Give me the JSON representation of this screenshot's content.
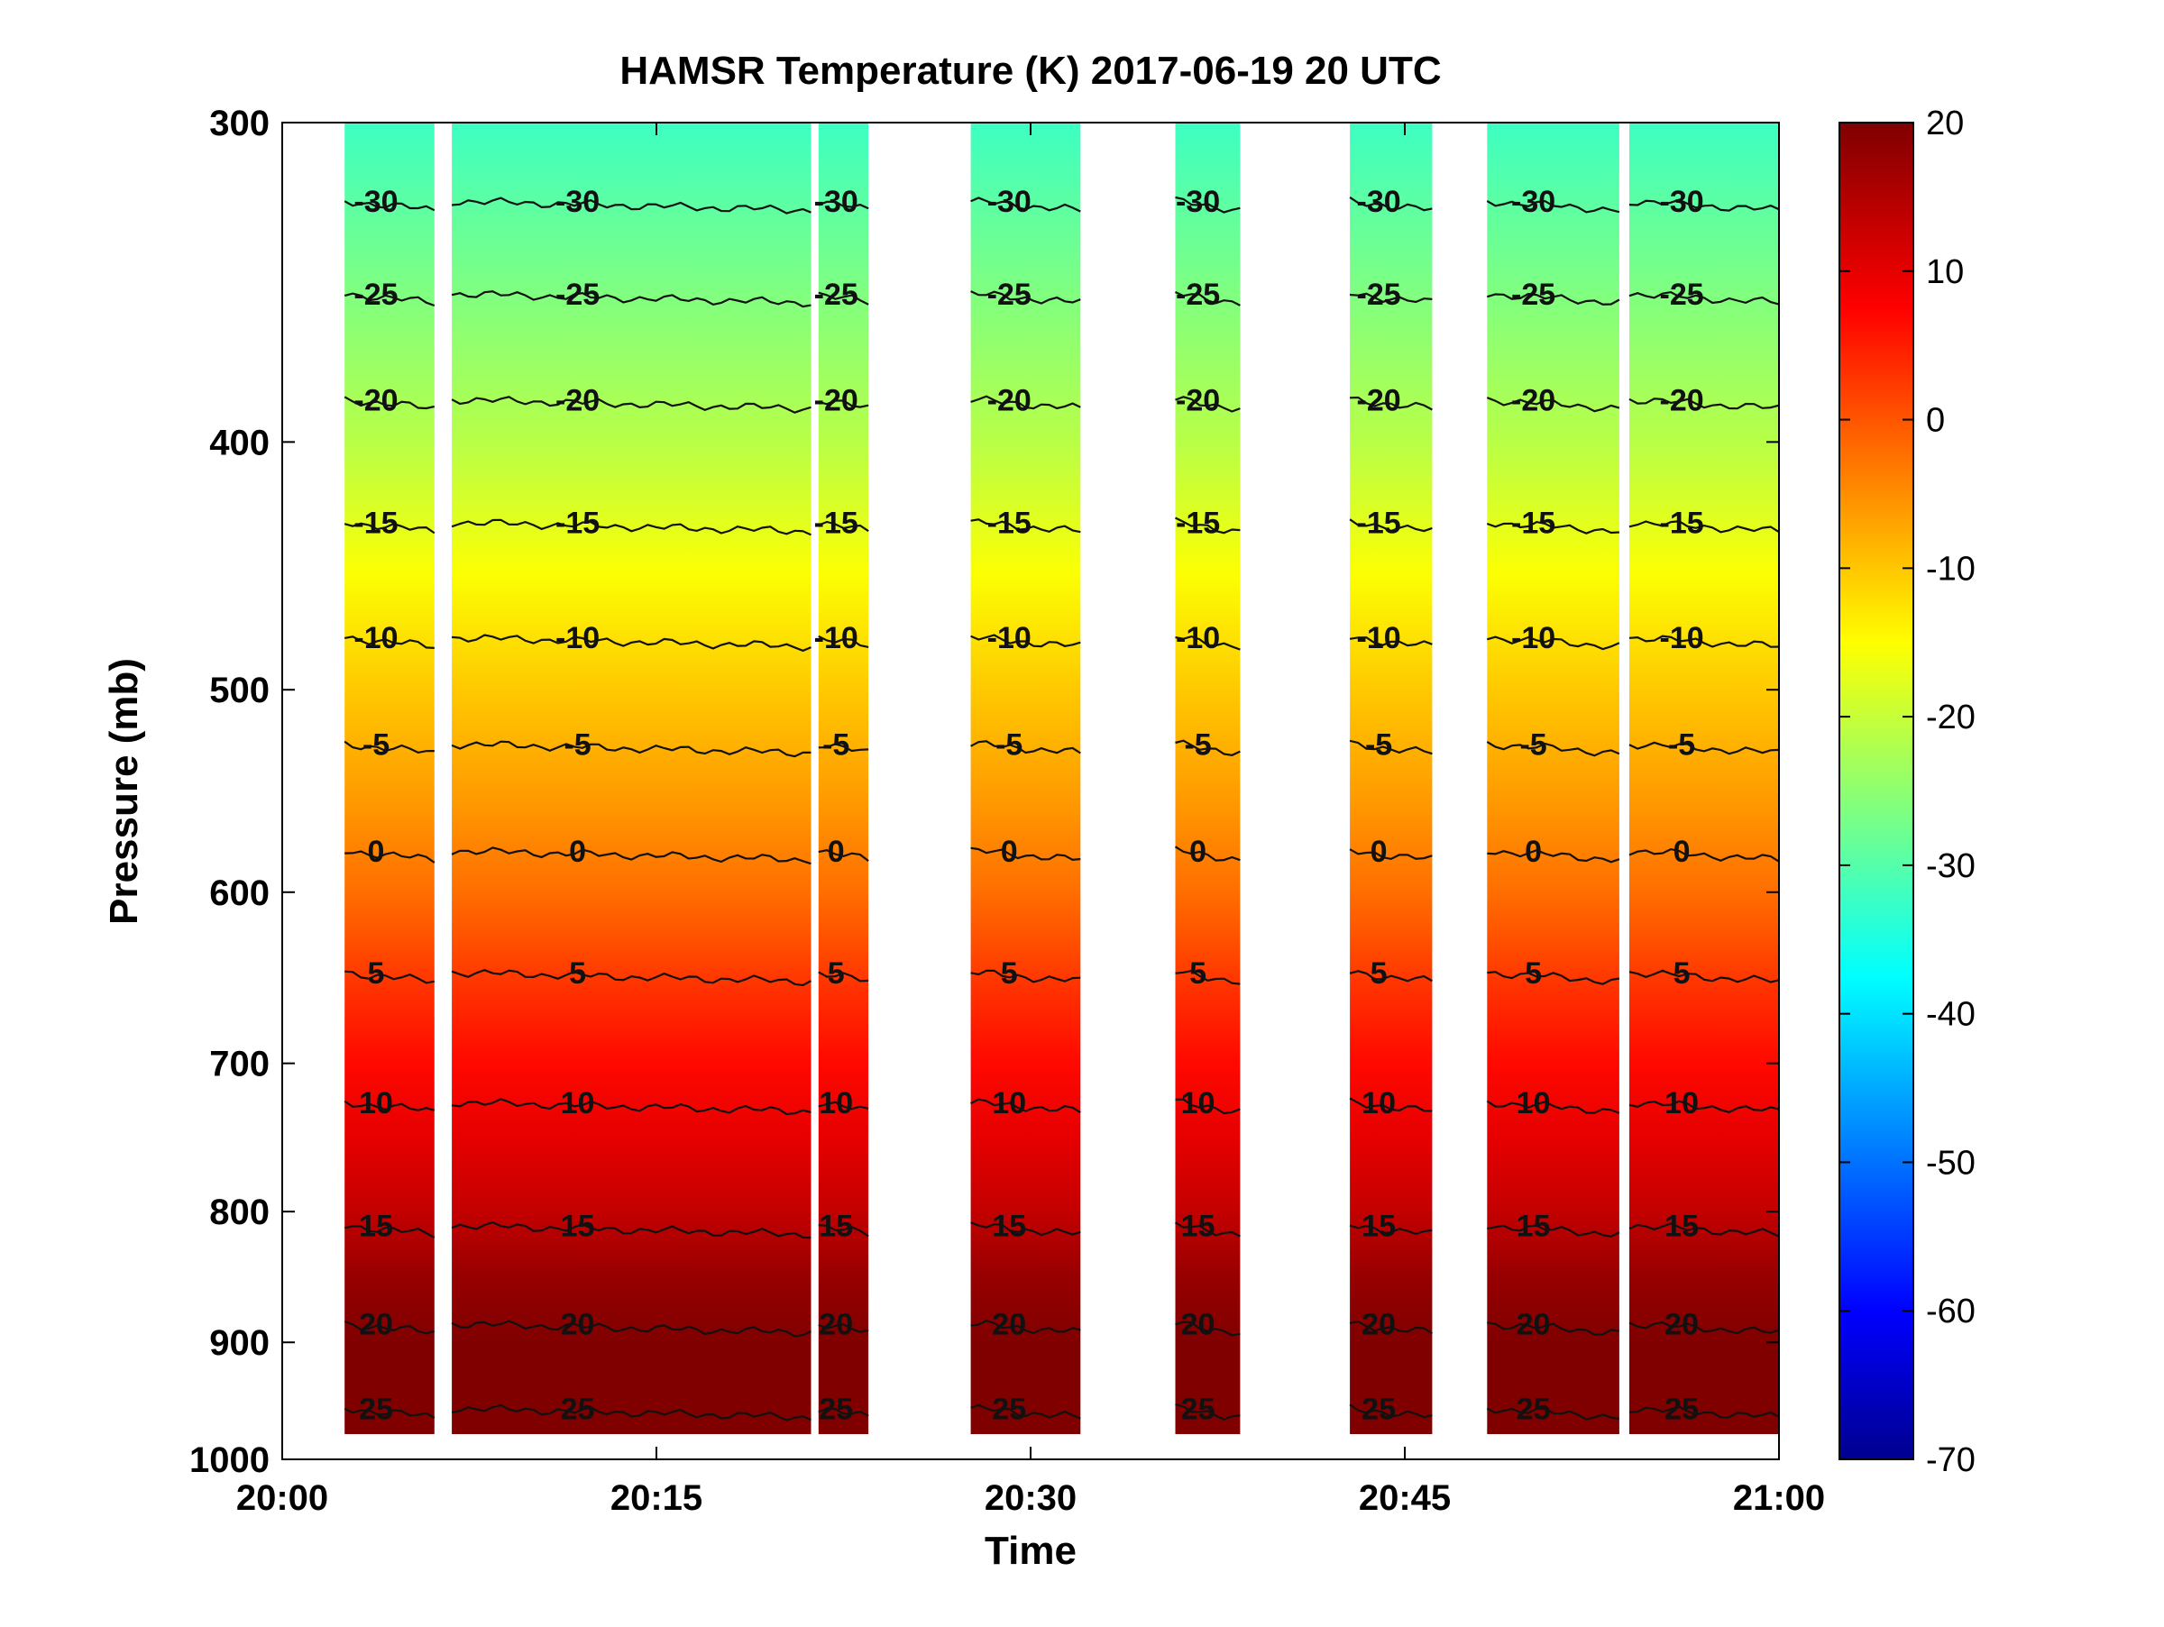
{
  "chart_data": {
    "type": "heatmap",
    "title": "HAMSR  Temperature (K) 2017-06-19 20 UTC",
    "xlabel": "Time",
    "ylabel": "Pressure (mb)",
    "x_range": [
      "20:00",
      "21:00"
    ],
    "x_ticks": [
      "20:00",
      "20:15",
      "20:30",
      "20:45",
      "21:00"
    ],
    "y_range": [
      300,
      1000
    ],
    "y_scale": "log",
    "y_direction": "reversed",
    "y_ticks": [
      300,
      400,
      500,
      600,
      700,
      800,
      900,
      1000
    ],
    "colorbar": {
      "colormap": "jet",
      "range": [
        -70,
        20
      ],
      "ticks": [
        20,
        10,
        0,
        -10,
        -20,
        -30,
        -40,
        -50,
        -60,
        -70
      ]
    },
    "data_segments_minutes": [
      [
        2.5,
        6.1
      ],
      [
        6.8,
        21.2
      ],
      [
        21.5,
        23.5
      ],
      [
        27.6,
        32.0
      ],
      [
        35.8,
        38.4
      ],
      [
        42.8,
        46.1
      ],
      [
        48.3,
        53.6
      ],
      [
        54.0,
        60.0
      ]
    ],
    "temperature_profile": {
      "pressure_mb": [
        300,
        350,
        400,
        450,
        500,
        550,
        600,
        650,
        700,
        750,
        800,
        850,
        900,
        950,
        1000
      ],
      "temperature": [
        -31,
        -25,
        -20,
        -14,
        -9,
        -5,
        -1,
        4,
        8,
        11,
        14,
        18,
        21,
        25,
        28
      ]
    },
    "contours": [
      {
        "level": -30,
        "pressure_mb": 322,
        "label": "-30"
      },
      {
        "level": -25,
        "pressure_mb": 350,
        "label": "-25"
      },
      {
        "level": -20,
        "pressure_mb": 385,
        "label": "-20"
      },
      {
        "level": -15,
        "pressure_mb": 430,
        "label": "-15"
      },
      {
        "level": -10,
        "pressure_mb": 477,
        "label": "-10"
      },
      {
        "level": -5,
        "pressure_mb": 525,
        "label": "-5"
      },
      {
        "level": 0,
        "pressure_mb": 578,
        "label": "0"
      },
      {
        "level": 5,
        "pressure_mb": 645,
        "label": "5"
      },
      {
        "level": 10,
        "pressure_mb": 725,
        "label": "10"
      },
      {
        "level": 15,
        "pressure_mb": 810,
        "label": "15"
      },
      {
        "level": 20,
        "pressure_mb": 885,
        "label": "20"
      },
      {
        "level": 25,
        "pressure_mb": 955,
        "label": "25"
      }
    ],
    "legend": "colorbar-right",
    "grid": false
  }
}
